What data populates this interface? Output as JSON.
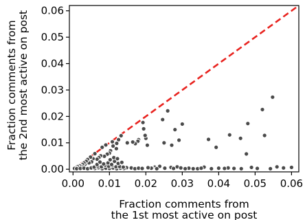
{
  "chart_data": {
    "type": "scatter",
    "xlabel": [
      "Fraction comments from",
      "the 1st most active on post"
    ],
    "ylabel": [
      "Fraction comments from",
      "the 2nd most active on post"
    ],
    "xlim": [
      -0.001,
      0.062
    ],
    "ylim": [
      -0.001,
      0.062
    ],
    "xticks": [
      "0.00",
      "0.01",
      "0.02",
      "0.03",
      "0.04",
      "0.05",
      "0.06"
    ],
    "yticks": [
      "0.00",
      "0.01",
      "0.02",
      "0.03",
      "0.04",
      "0.05",
      "0.06"
    ],
    "grid": false,
    "reference_line": {
      "from": [
        0,
        0
      ],
      "to": [
        0.062,
        0.062
      ],
      "style": "dashed",
      "color": "#e8231f"
    },
    "marker_color": "#4a4a4a",
    "marker_edge_color": "#ffffff",
    "points": [
      [
        0.0548,
        0.0273
      ],
      [
        0.0578,
        0.0005
      ],
      [
        0.06,
        0.0007
      ],
      [
        0.056,
        0.0009
      ],
      [
        0.052,
        0.0226
      ],
      [
        0.0526,
        0.0128
      ],
      [
        0.049,
        0.0007
      ],
      [
        0.048,
        0.0173
      ],
      [
        0.0476,
        0.0058
      ],
      [
        0.046,
        0.0117
      ],
      [
        0.043,
        0.013
      ],
      [
        0.0442,
        0.0003
      ],
      [
        0.0426,
        0.0005
      ],
      [
        0.04,
        0.0004
      ],
      [
        0.0393,
        0.0083
      ],
      [
        0.0372,
        0.0113
      ],
      [
        0.036,
        0.0008
      ],
      [
        0.0342,
        0.0002
      ],
      [
        0.033,
        0.0002
      ],
      [
        0.0318,
        0.0004
      ],
      [
        0.03,
        0.0171
      ],
      [
        0.0291,
        0.011
      ],
      [
        0.0286,
        0.0009
      ],
      [
        0.028,
        0.015
      ],
      [
        0.0271,
        0.0091
      ],
      [
        0.0269,
        0.0007
      ],
      [
        0.026,
        0.0221
      ],
      [
        0.025,
        0.01
      ],
      [
        0.0246,
        0.0188
      ],
      [
        0.0238,
        0.0011
      ],
      [
        0.0224,
        0.0008
      ],
      [
        0.0217,
        0.0005
      ],
      [
        0.0215,
        0.0004
      ],
      [
        0.0204,
        0.0091
      ],
      [
        0.02,
        0.0117
      ],
      [
        0.0198,
        0.0128
      ],
      [
        0.0194,
        0.0153
      ],
      [
        0.0192,
        0.0177
      ],
      [
        0.018,
        0.0112
      ],
      [
        0.0178,
        0.0106
      ],
      [
        0.0171,
        0.0097
      ],
      [
        0.0164,
        0.0103
      ],
      [
        0.0149,
        0.01
      ],
      [
        0.0147,
        0.0006
      ],
      [
        0.0132,
        0.0127
      ],
      [
        0.0125,
        0.0112
      ],
      [
        0.012,
        0.0098
      ],
      [
        0.0119,
        0.0078
      ],
      [
        0.011,
        0.0088
      ],
      [
        0.0108,
        0.0104
      ],
      [
        0.0103,
        0.007
      ],
      [
        0.01,
        0.0061
      ],
      [
        0.0094,
        0.0057
      ],
      [
        0.009,
        0.0092
      ],
      [
        0.0086,
        0.0049
      ],
      [
        0.008,
        0.0083
      ],
      [
        0.0076,
        0.0051
      ],
      [
        0.0071,
        0.0044
      ],
      [
        0.0066,
        0.0038
      ],
      [
        0.006,
        0.0059
      ],
      [
        0.0055,
        0.004
      ],
      [
        0.0051,
        0.0028
      ],
      [
        0.0048,
        0.0046
      ],
      [
        0.0044,
        0.0024
      ],
      [
        0.004,
        0.0037
      ],
      [
        0.0036,
        0.003
      ],
      [
        0.0033,
        0.0019
      ],
      [
        0.003,
        0.0024
      ],
      [
        0.0026,
        0.0018
      ],
      [
        0.0022,
        0.0012
      ],
      [
        0.0018,
        0.0013
      ],
      [
        0.0015,
        0.0008
      ],
      [
        0.0012,
        0.001
      ],
      [
        0.0008,
        0.0006
      ],
      [
        0.0004,
        0.0003
      ],
      [
        0.001,
        0.0002
      ],
      [
        0.002,
        0.0003
      ],
      [
        0.003,
        0.0004
      ],
      [
        0.004,
        0.0002
      ],
      [
        0.005,
        0.0005
      ],
      [
        0.006,
        0.0003
      ],
      [
        0.007,
        0.0006
      ],
      [
        0.008,
        0.0002
      ],
      [
        0.009,
        0.0004
      ],
      [
        0.01,
        0.0003
      ],
      [
        0.011,
        0.0005
      ],
      [
        0.012,
        0.0002
      ],
      [
        0.013,
        0.0004
      ],
      [
        0.014,
        0.0003
      ],
      [
        0.016,
        0.0005
      ],
      [
        0.017,
        0.0002
      ],
      [
        0.018,
        0.0004
      ],
      [
        0.019,
        0.0003
      ],
      [
        0.0206,
        0.0006
      ],
      [
        0.023,
        0.0002
      ],
      [
        0.0252,
        0.0004
      ],
      [
        0.0276,
        0.0003
      ],
      [
        0.0296,
        0.0005
      ],
      [
        0.0308,
        0.0002
      ],
      [
        0.0352,
        0.0004
      ],
      [
        0.038,
        0.0002
      ],
      [
        0.0416,
        0.0003
      ],
      [
        0.0462,
        0.0002
      ],
      [
        0.0506,
        0.0003
      ],
      [
        0.0542,
        0.0002
      ],
      [
        0.0058,
        0.0008
      ],
      [
        0.0068,
        0.0012
      ],
      [
        0.0078,
        0.0009
      ],
      [
        0.0088,
        0.0015
      ],
      [
        0.0098,
        0.0011
      ],
      [
        0.0108,
        0.0014
      ],
      [
        0.0118,
        0.0009
      ],
      [
        0.0128,
        0.001
      ],
      [
        0.0138,
        0.0008
      ],
      [
        0.0084,
        0.002
      ],
      [
        0.0096,
        0.0024
      ],
      [
        0.0106,
        0.0018
      ],
      [
        0.0114,
        0.003
      ],
      [
        0.0124,
        0.0022
      ],
      [
        0.0066,
        0.0018
      ],
      [
        0.0074,
        0.0027
      ],
      [
        0.0102,
        0.0036
      ],
      [
        0.0112,
        0.0044
      ],
      [
        0.0122,
        0.004
      ],
      [
        0.0134,
        0.0026
      ]
    ]
  }
}
